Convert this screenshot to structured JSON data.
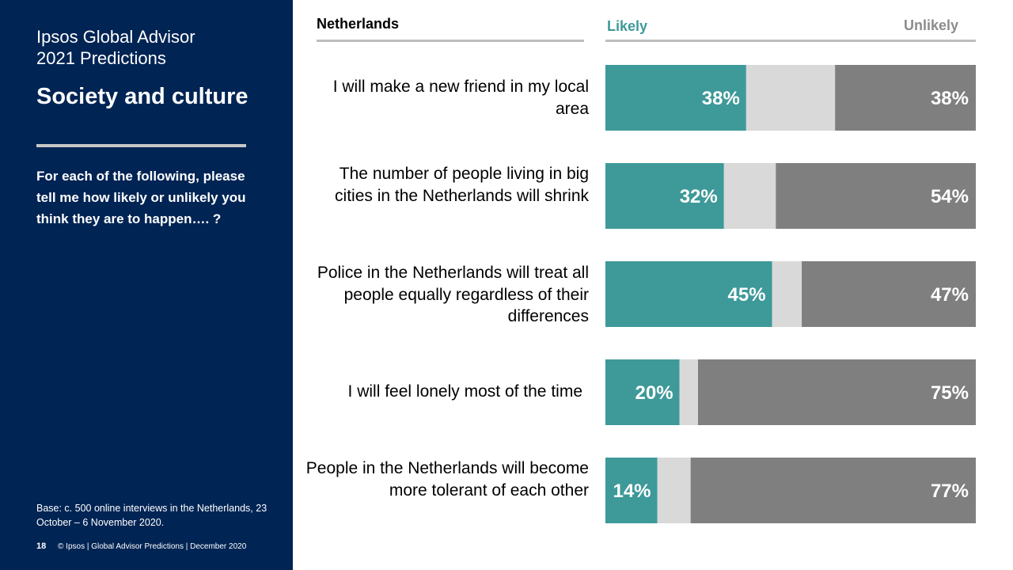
{
  "sidebar": {
    "brand_line1": "Ipsos Global Advisor",
    "brand_line2": "2021 Predictions",
    "section_title": "Society and culture",
    "question": "For each of the following, please tell me how likely or unlikely you think they are to happen…. ?",
    "base_note": "Base: c. 500 online interviews in the Netherlands,  23 October – 6 November 2020.",
    "page_number": "18",
    "footer_text": "© Ipsos | Global Advisor Predictions | December 2020"
  },
  "colors": {
    "sidebar_bg": "#002454",
    "likely": "#3e9999",
    "neutral": "#d9d9d9",
    "unlikely": "#7f7f7f"
  },
  "chart_data": {
    "type": "bar",
    "orientation": "horizontal-stacked",
    "country": "Netherlands",
    "legend": [
      "Likely",
      "Unlikely"
    ],
    "categories": [
      "I will make a new friend in my local area",
      "The number of people living in big cities in the Netherlands will shrink",
      "Police in the Netherlands will treat all people equally regardless of their differences",
      "I will feel lonely most of the time",
      "People in the Netherlands will become more tolerant of each other"
    ],
    "series": [
      {
        "name": "Likely",
        "values": [
          38,
          32,
          45,
          20,
          14
        ],
        "labels": [
          "38%",
          "32%",
          "45%",
          "20%",
          "14%"
        ]
      },
      {
        "name": "Unlikely",
        "values": [
          38,
          54,
          47,
          75,
          77
        ],
        "labels": [
          "38%",
          "54%",
          "47%",
          "75%",
          "77%"
        ]
      }
    ],
    "xlim": [
      0,
      100
    ]
  }
}
